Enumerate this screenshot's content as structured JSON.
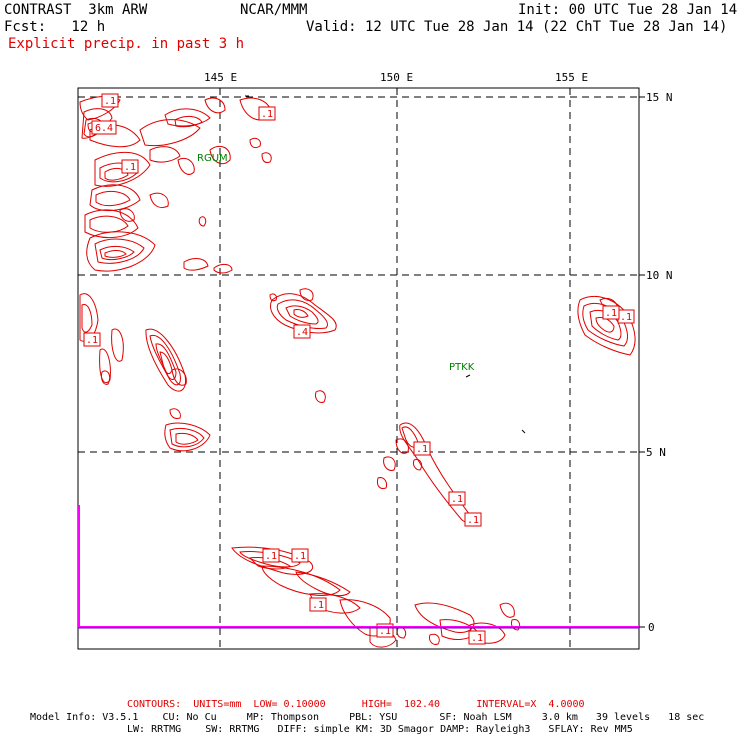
{
  "header": {
    "model": "CONTRAST  3km ARW",
    "institution": "NCAR/MMM",
    "init": "Init: 00 UTC Tue 28 Jan 14",
    "fcst": "Fcst:   12 h",
    "valid": "Valid: 12 UTC Tue 28 Jan 14 (22 ChT Tue 28 Jan 14)",
    "field": "Explicit precip. in past 3 h"
  },
  "axes": {
    "lon_labels": [
      "145 E",
      "150 E",
      "155 E"
    ],
    "lat_labels": [
      "15 N",
      "10 N",
      "5 N"
    ],
    "bar_zero": "0"
  },
  "stations": [
    "RGUM",
    "PTKK"
  ],
  "contour_labels": [
    ".1",
    "6.4",
    ".1",
    ".1",
    ".1",
    ".4",
    ".1",
    ".1",
    ".1",
    ".1",
    ".1",
    ".1",
    ".1",
    ".1",
    ".1",
    ".1"
  ],
  "footer": {
    "contours": "CONTOURS:  UNITS=mm  LOW= 0.10000      HIGH=  102.40      INTERVAL=X  4.0000",
    "model_info_1": "Model Info: V3.5.1    CU: No Cu     MP: Thompson     PBL: YSU       SF: Noah LSM     3.0 km   39 levels   18 sec",
    "model_info_2": "LW: RRTMG    SW: RRTMG   DIFF: simple KM: 3D Smagor DAMP: Rayleigh3   SFLAY: Rev MM5"
  },
  "colors": {
    "contour": "#e00000",
    "station": "#008000",
    "bar": "#ff00ff",
    "bar_line": "#8000c0",
    "grid": "#000000"
  }
}
